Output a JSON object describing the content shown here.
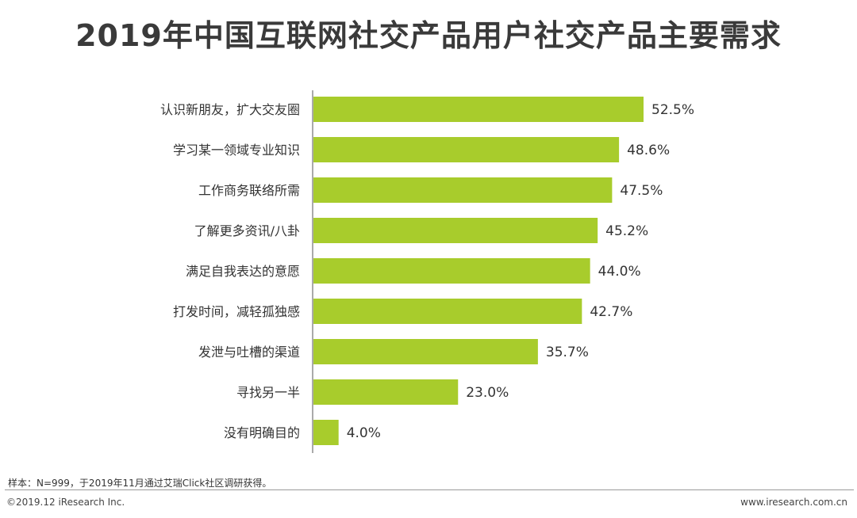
{
  "title": "2019年中国互联网社交产品用户社交产品主要需求",
  "chart_data": {
    "type": "bar",
    "orientation": "horizontal",
    "categories": [
      "认识新朋友，扩大交友圈",
      "学习某一领域专业知识",
      "工作商务联络所需",
      "了解更多资讯/八卦",
      "满足自我表达的意愿",
      "打发时间，减轻孤独感",
      "发泄与吐槽的渠道",
      "寻找另一半",
      "没有明确目的"
    ],
    "values": [
      52.5,
      48.6,
      47.5,
      45.2,
      44.0,
      42.7,
      35.7,
      23.0,
      4.0
    ],
    "value_labels": [
      "52.5%",
      "48.6%",
      "47.5%",
      "45.2%",
      "44.0%",
      "42.7%",
      "35.7%",
      "23.0%",
      "4.0%"
    ],
    "bar_color": "#a8cc2c",
    "xlim": [
      0,
      52.5
    ]
  },
  "footer": {
    "note": "样本：N=999，于2019年11月通过艾瑞Click社区调研获得。",
    "copyright": "©2019.12 iResearch Inc.",
    "website": "www.iresearch.com.cn"
  }
}
